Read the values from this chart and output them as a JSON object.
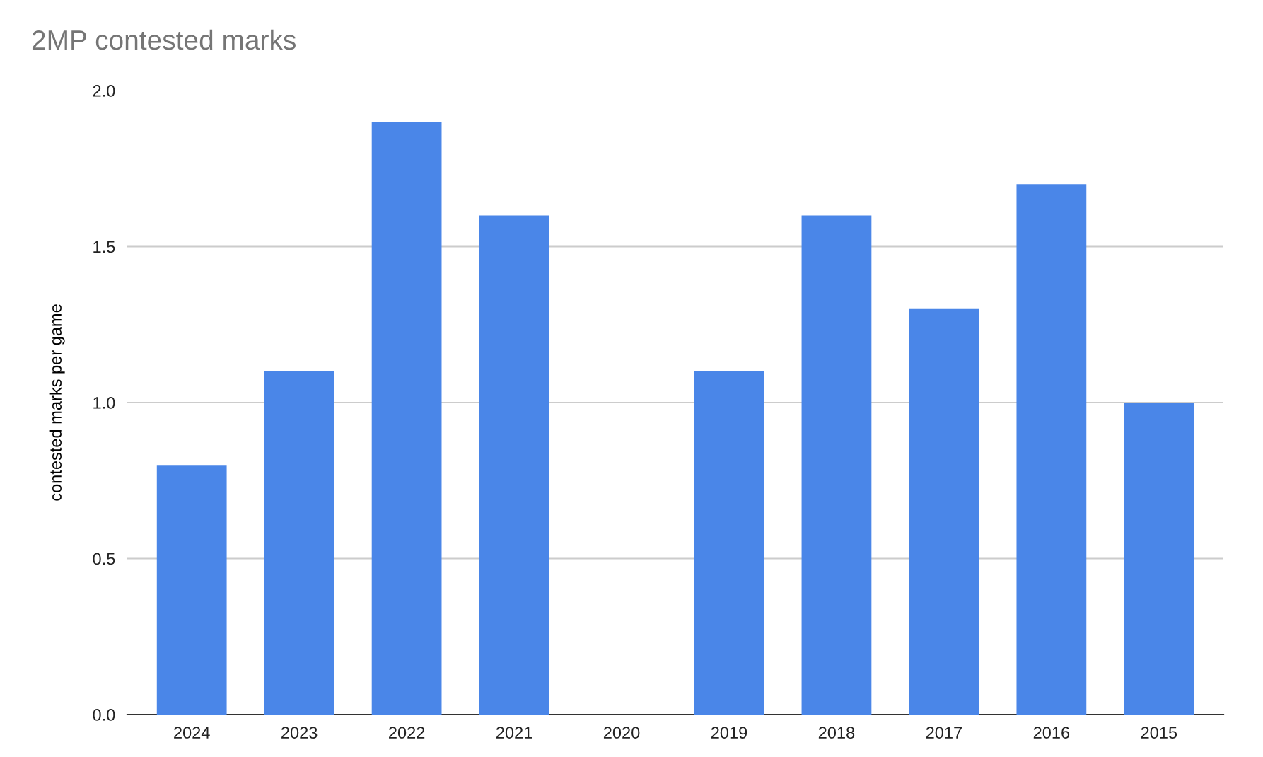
{
  "chart_data": {
    "type": "bar",
    "title": "2MP contested marks",
    "ylabel": "contested marks per game",
    "categories": [
      "2024",
      "2023",
      "2022",
      "2021",
      "2020",
      "2019",
      "2018",
      "2017",
      "2016",
      "2015"
    ],
    "values": [
      0.8,
      1.1,
      1.9,
      1.6,
      null,
      1.1,
      1.6,
      1.3,
      1.7,
      1.0
    ],
    "color": "#4a86e8",
    "ylim": [
      0,
      2
    ],
    "yticks": [
      {
        "value": 0,
        "label": "0.0"
      },
      {
        "value": 0.5,
        "label": "0.5"
      },
      {
        "value": 1,
        "label": "1.0"
      },
      {
        "value": 1.5,
        "label": "1.5"
      },
      {
        "value": 2,
        "label": "2.0"
      }
    ],
    "grid": "y",
    "legend": false
  }
}
